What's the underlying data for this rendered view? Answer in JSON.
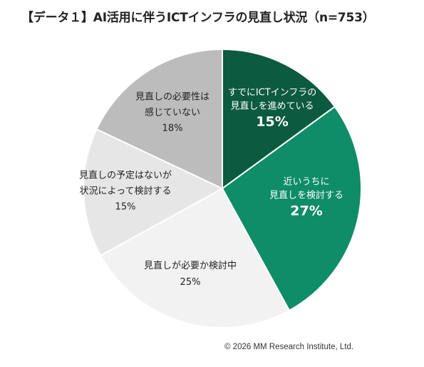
{
  "title": "【データ１】AI活用に伴うICTインフラの見直し状況（n=753）",
  "footer": "© 2026 MM Research Institute, Ltd.",
  "chart_data": {
    "type": "pie",
    "title": "【データ１】AI活用に伴うICTインフラの見直し状況（n=753）",
    "slices": [
      {
        "label_lines": [
          "すでにICTインフラの",
          "見直しを進めている"
        ],
        "value": 15,
        "value_label": "15%",
        "color": "#0c5a3f"
      },
      {
        "label_lines": [
          "近いうちに",
          "見直しを検討する"
        ],
        "value": 27,
        "value_label": "27%",
        "color": "#0f8c68"
      },
      {
        "label_lines": [
          "見直しが必要か検討中"
        ],
        "value": 25,
        "value_label": "25%",
        "color": "#f2f2f2"
      },
      {
        "label_lines": [
          "見直しの予定はないが",
          "状況によって検討する"
        ],
        "value": 15,
        "value_label": "15%",
        "color": "#e6e6e6"
      },
      {
        "label_lines": [
          "見直しの必要性は",
          "感じていない"
        ],
        "value": 18,
        "value_label": "18%",
        "color": "#bcbcbc"
      }
    ]
  }
}
